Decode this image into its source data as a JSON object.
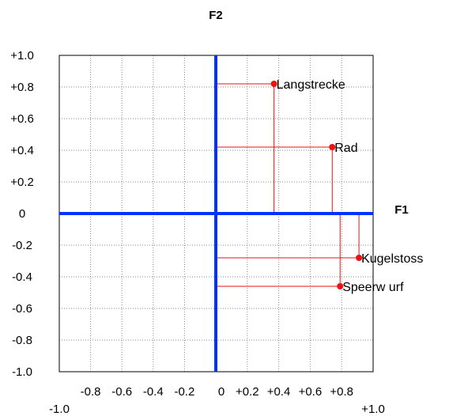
{
  "chart_data": {
    "type": "scatter",
    "x_axis_name": "F1",
    "y_axis_name": "F2",
    "xlim": [
      -1.0,
      1.0
    ],
    "ylim": [
      -1.0,
      1.0
    ],
    "grid": true,
    "x_tick_labels": [
      {
        "value": -1.0,
        "label": "-1.0"
      },
      {
        "value": -0.8,
        "label": "-0.8"
      },
      {
        "value": -0.6,
        "label": "-0.6"
      },
      {
        "value": -0.4,
        "label": "-0.4"
      },
      {
        "value": -0.2,
        "label": "-0.2"
      },
      {
        "value": 0.0,
        "label": "0"
      },
      {
        "value": 0.2,
        "label": "+0.2"
      },
      {
        "value": 0.4,
        "label": "+0.4"
      },
      {
        "value": 0.6,
        "label": "+0.6"
      },
      {
        "value": 0.8,
        "label": "+0.8"
      },
      {
        "value": 1.0,
        "label": "+1.0"
      }
    ],
    "y_tick_labels": [
      {
        "value": 1.0,
        "label": "+1.0"
      },
      {
        "value": 0.8,
        "label": "+0.8"
      },
      {
        "value": 0.6,
        "label": "+0.6"
      },
      {
        "value": 0.4,
        "label": "+0.4"
      },
      {
        "value": 0.2,
        "label": "+0.2"
      },
      {
        "value": 0.0,
        "label": "0"
      },
      {
        "value": -0.2,
        "label": "-0.2"
      },
      {
        "value": -0.4,
        "label": "-0.4"
      },
      {
        "value": -0.6,
        "label": "-0.6"
      },
      {
        "value": -0.8,
        "label": "-0.8"
      },
      {
        "value": -1.0,
        "label": "-1.0"
      }
    ],
    "points": [
      {
        "label": "Langstrecke",
        "x": 0.37,
        "y": 0.82
      },
      {
        "label": "Rad",
        "x": 0.74,
        "y": 0.42
      },
      {
        "label": "Kugelstoss",
        "x": 0.91,
        "y": -0.28
      },
      {
        "label": "Speerw urf",
        "x": 0.79,
        "y": -0.46
      }
    ],
    "colors": {
      "axes": "#0033ff",
      "points": "#ee1111",
      "grid": "#888888"
    }
  }
}
